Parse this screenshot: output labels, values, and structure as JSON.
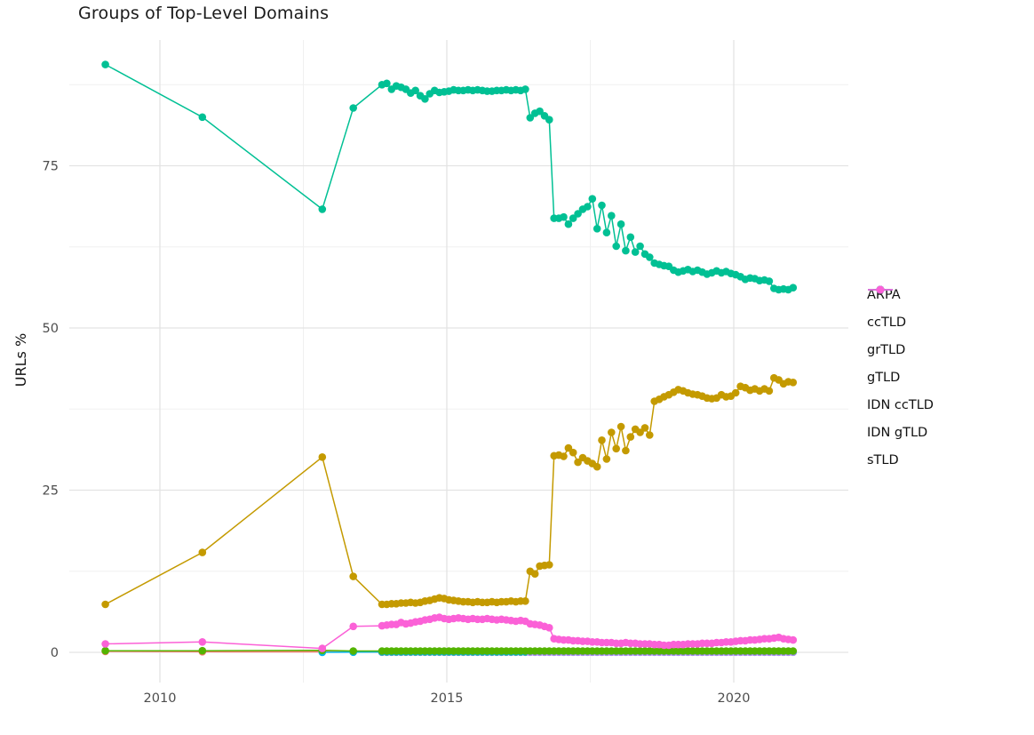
{
  "title": "Groups of Top-Level Domains",
  "axes": {
    "y_label": "URLs %",
    "y_ticks": [
      0,
      25,
      50,
      75
    ],
    "y_tick_labels": [
      "0",
      "25",
      "50",
      "75"
    ],
    "y_minor_ticks": [
      12.5,
      37.5,
      62.5,
      87.5
    ],
    "x_ticks": [
      2010,
      2015,
      2020
    ],
    "x_tick_labels": [
      "2010",
      "2015",
      "2020"
    ],
    "x_minor_ticks": [
      2012.5,
      2017.5
    ],
    "grid": "major-and-minor",
    "grid_major_color": "#e3e3e3",
    "grid_minor_color": "#f0f0f0"
  },
  "legend": {
    "position": "right",
    "items": [
      "ARPA",
      "ccTLD",
      "grTLD",
      "gTLD",
      "IDN ccTLD",
      "IDN gTLD",
      "sTLD"
    ]
  },
  "chart_data": {
    "type": "line",
    "marker": "point",
    "xlabel": "",
    "ylabel": "URLs %",
    "xlim": [
      2008.4,
      2022.0
    ],
    "ylim": [
      -4.7,
      94.4
    ],
    "series": [
      {
        "name": "ARPA",
        "color": "#F8766D",
        "z": 0,
        "segments": [
          {
            "pts": [
              [
                2009.05,
                0.15
              ],
              [
                2010.74,
                0.1
              ],
              [
                2012.83,
                0.08
              ],
              [
                2013.37,
                0.05
              ]
            ]
          },
          {
            "x0": 2013.87,
            "dx": 0.0833,
            "n": 87,
            "v": 0.03
          }
        ]
      },
      {
        "name": "ccTLD",
        "color": "#C49A00",
        "z": 3,
        "segments": [
          {
            "pts": [
              [
                2009.05,
                7.4
              ],
              [
                2010.74,
                15.4
              ],
              [
                2012.83,
                30.1
              ],
              [
                2013.37,
                11.7
              ]
            ]
          },
          {
            "x0": 2013.87,
            "dx": 0.0833,
            "vals": [
              7.4,
              7.4,
              7.5,
              7.5,
              7.6,
              7.6,
              7.7,
              7.6,
              7.7,
              7.9,
              8.0,
              8.2,
              8.4,
              8.3,
              8.1,
              8.0,
              7.9,
              7.8,
              7.8,
              7.7,
              7.8,
              7.7,
              7.7,
              7.8,
              7.7,
              7.8,
              7.8,
              7.9,
              7.8,
              7.9,
              7.9,
              12.5,
              12.1,
              13.3,
              13.4,
              13.5,
              30.3,
              30.4,
              30.2,
              31.5,
              30.8,
              29.3,
              30.0,
              29.5,
              29.1,
              28.6,
              32.7,
              29.8,
              33.9,
              31.4,
              34.8,
              31.1,
              33.2,
              34.4,
              33.9,
              34.6,
              33.5,
              38.7,
              39.0,
              39.4,
              39.7,
              40.1,
              40.5,
              40.3,
              40.0,
              39.8,
              39.7,
              39.5,
              39.2,
              39.1,
              39.2,
              39.7,
              39.4,
              39.5,
              40.0,
              41.0,
              40.8,
              40.4,
              40.6,
              40.3,
              40.6,
              40.3,
              42.3,
              42.0,
              41.4,
              41.7,
              41.6
            ]
          }
        ]
      },
      {
        "name": "grTLD",
        "color": "#53B400",
        "z": 4,
        "segments": [
          {
            "pts": [
              [
                2009.05,
                0.25
              ],
              [
                2010.74,
                0.25
              ],
              [
                2012.83,
                0.3
              ],
              [
                2013.37,
                0.2
              ]
            ]
          },
          {
            "x0": 2013.87,
            "dx": 0.0833,
            "n": 87,
            "v": 0.2
          }
        ]
      },
      {
        "name": "gTLD",
        "color": "#00C094",
        "z": 5,
        "segments": [
          {
            "pts": [
              [
                2009.05,
                90.6
              ],
              [
                2010.74,
                82.5
              ],
              [
                2012.83,
                68.3
              ],
              [
                2013.37,
                83.9
              ]
            ]
          },
          {
            "x0": 2013.87,
            "dx": 0.0833,
            "vals": [
              87.5,
              87.7,
              86.8,
              87.3,
              87.1,
              86.8,
              86.2,
              86.6,
              85.8,
              85.3,
              86.1,
              86.6,
              86.3,
              86.4,
              86.5,
              86.7,
              86.6,
              86.6,
              86.7,
              86.6,
              86.7,
              86.6,
              86.5,
              86.5,
              86.6,
              86.6,
              86.7,
              86.6,
              86.7,
              86.6,
              86.8,
              82.4,
              83.1,
              83.4,
              82.7,
              82.1,
              66.9,
              66.9,
              67.1,
              66.0,
              66.9,
              67.6,
              68.3,
              68.7,
              69.9,
              65.3,
              68.9,
              64.7,
              67.3,
              62.6,
              66.0,
              61.9,
              64.0,
              61.7,
              62.6,
              61.4,
              60.9,
              60.0,
              59.8,
              59.6,
              59.5,
              58.9,
              58.6,
              58.8,
              59.0,
              58.7,
              58.9,
              58.6,
              58.3,
              58.5,
              58.8,
              58.5,
              58.7,
              58.4,
              58.2,
              57.9,
              57.5,
              57.7,
              57.6,
              57.3,
              57.4,
              57.2,
              56.1,
              55.9,
              56.0,
              55.9,
              56.2
            ]
          }
        ]
      },
      {
        "name": "IDN ccTLD",
        "color": "#00B6EB",
        "z": 1,
        "segments": [
          {
            "pts": [
              [
                2012.83,
                0.02
              ],
              [
                2013.37,
                0.03
              ]
            ]
          },
          {
            "x0": 2013.87,
            "dx": 0.0833,
            "n": 87,
            "v": 0.06
          }
        ]
      },
      {
        "name": "IDN gTLD",
        "color": "#A58AFF",
        "z": 2,
        "segments": [
          {
            "x0": 2016.45,
            "dx": 0.0833,
            "n": 56,
            "v": 0.04
          }
        ]
      },
      {
        "name": "sTLD",
        "color": "#FB61D7",
        "z": 6,
        "segments": [
          {
            "pts": [
              [
                2009.05,
                1.3
              ],
              [
                2010.74,
                1.6
              ],
              [
                2012.83,
                0.6
              ],
              [
                2013.37,
                4.0
              ]
            ]
          },
          {
            "x0": 2013.87,
            "dx": 0.0833,
            "vals": [
              4.1,
              4.2,
              4.3,
              4.3,
              4.6,
              4.4,
              4.5,
              4.7,
              4.8,
              5.0,
              5.1,
              5.3,
              5.4,
              5.2,
              5.1,
              5.2,
              5.3,
              5.2,
              5.1,
              5.2,
              5.1,
              5.1,
              5.2,
              5.1,
              5.0,
              5.1,
              5.0,
              4.9,
              4.8,
              4.9,
              4.8,
              4.4,
              4.3,
              4.2,
              4.0,
              3.8,
              2.1,
              2.0,
              1.9,
              1.9,
              1.8,
              1.8,
              1.7,
              1.7,
              1.6,
              1.6,
              1.5,
              1.5,
              1.5,
              1.4,
              1.4,
              1.5,
              1.4,
              1.4,
              1.3,
              1.3,
              1.3,
              1.2,
              1.2,
              1.1,
              1.1,
              1.2,
              1.2,
              1.2,
              1.3,
              1.3,
              1.3,
              1.4,
              1.4,
              1.4,
              1.5,
              1.5,
              1.6,
              1.6,
              1.7,
              1.8,
              1.8,
              1.9,
              1.9,
              2.0,
              2.1,
              2.1,
              2.2,
              2.3,
              2.1,
              2.0,
              1.9
            ]
          }
        ]
      }
    ]
  }
}
